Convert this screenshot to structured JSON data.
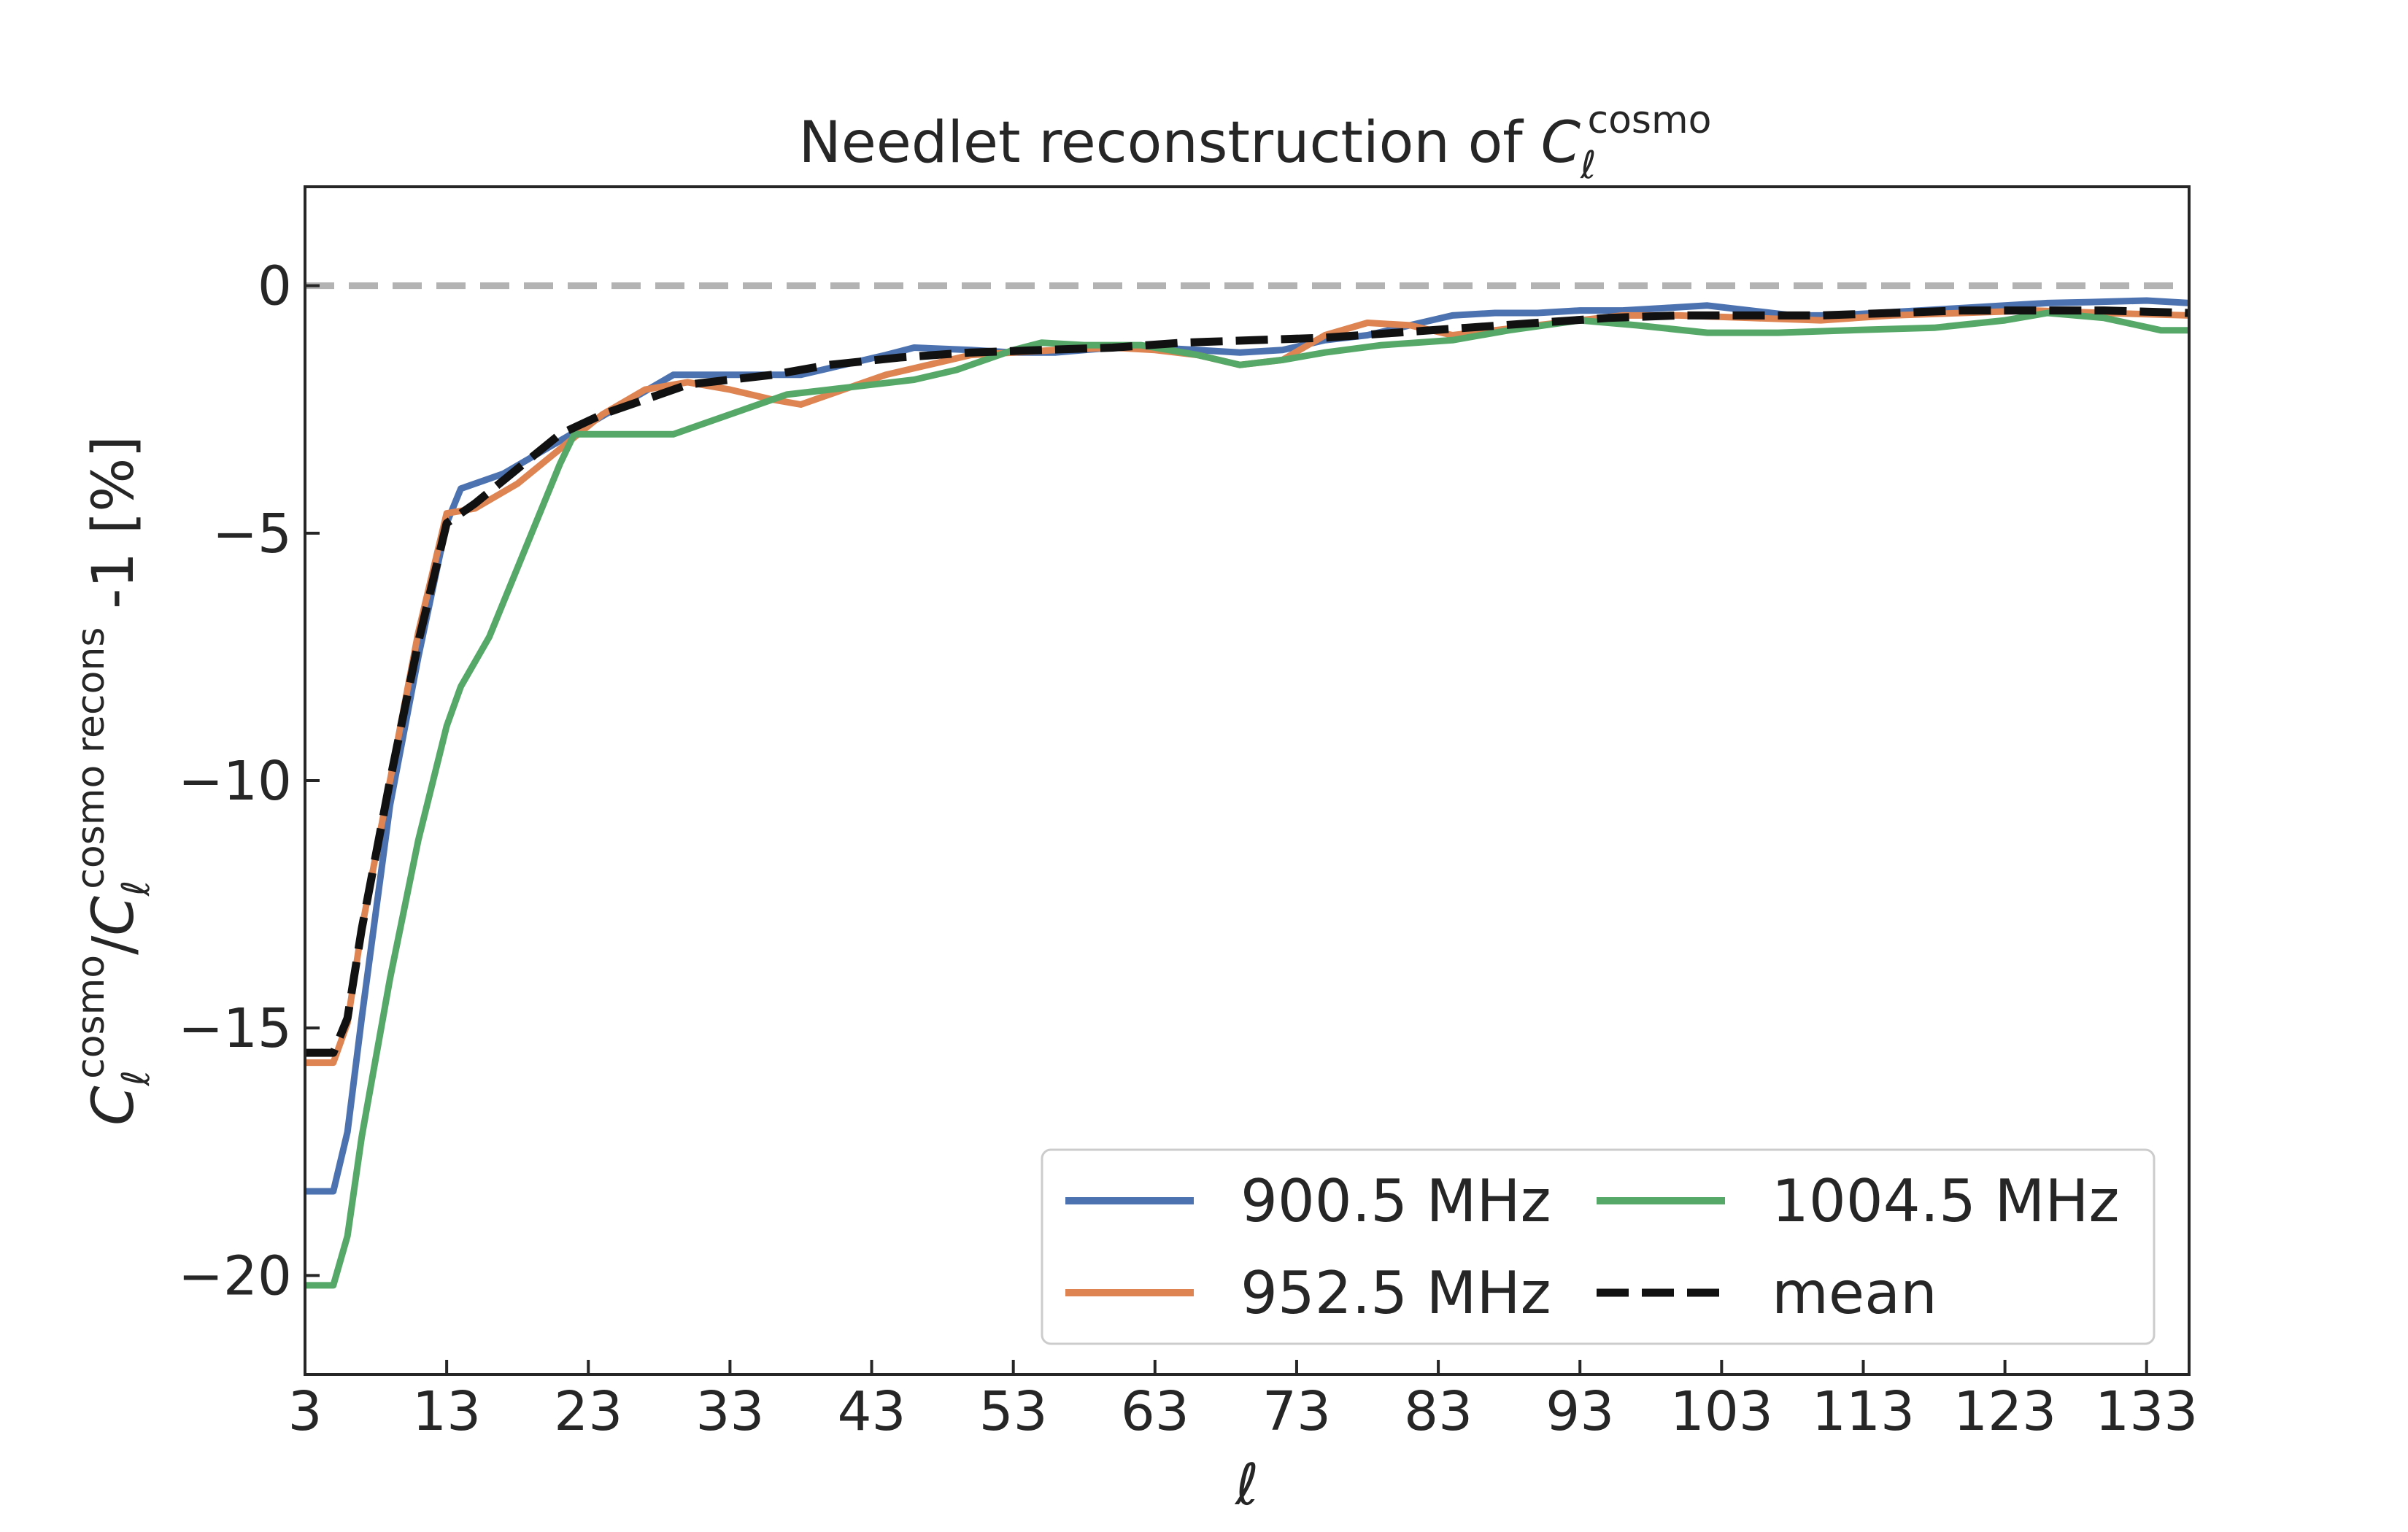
{
  "chart_data": {
    "type": "line",
    "title": "Needlet reconstruction of C_ℓ^cosmo",
    "title_parts": {
      "prefix": "Needlet reconstruction of ",
      "symbol": "C",
      "sub": "ℓ",
      "sup": "cosmo"
    },
    "xlabel": "ℓ",
    "ylabel": "C_ℓ^cosmo / C_ℓ^cosmo recons -1 [%]",
    "ylabel_parts": {
      "symbol": "C",
      "sub": "ℓ",
      "sup1": "cosmo",
      "slash": "/",
      "sup2": "cosmo recons",
      "suffix": " -1 [%]"
    },
    "xlim": [
      3,
      136
    ],
    "ylim": [
      -22,
      2
    ],
    "xticks": [
      3,
      13,
      23,
      33,
      43,
      53,
      63,
      73,
      83,
      93,
      103,
      113,
      123,
      133
    ],
    "yticks": [
      0,
      -5,
      -10,
      -15,
      -20
    ],
    "ytick_labels": [
      "0",
      "−5",
      "−10",
      "−15",
      "−20"
    ],
    "reference_line": {
      "y": 0,
      "style": "dashed",
      "color": "#b3b3b3"
    },
    "grid": false,
    "legend": {
      "position": "lower-right",
      "columns": 2
    },
    "series": [
      {
        "name": "900.5 MHz",
        "color": "#4c72b0",
        "style": "solid",
        "x": [
          3,
          5,
          6,
          7,
          9,
          11,
          13,
          14,
          17,
          20,
          23,
          26,
          29,
          32,
          35,
          38,
          41,
          44,
          46,
          50,
          53,
          56,
          60,
          63,
          66,
          69,
          72,
          75,
          78,
          81,
          84,
          87,
          90,
          93,
          96,
          99,
          102,
          105,
          108,
          111,
          114,
          117,
          120,
          123,
          126,
          129,
          133,
          136
        ],
        "y": [
          -18.3,
          -18.3,
          -17.1,
          -14.8,
          -10.5,
          -7.5,
          -4.8,
          -4.1,
          -3.8,
          -3.3,
          -2.8,
          -2.3,
          -1.8,
          -1.8,
          -1.8,
          -1.8,
          -1.6,
          -1.4,
          -1.25,
          -1.3,
          -1.35,
          -1.35,
          -1.25,
          -1.25,
          -1.3,
          -1.35,
          -1.3,
          -1.1,
          -1.0,
          -0.8,
          -0.6,
          -0.55,
          -0.55,
          -0.5,
          -0.5,
          -0.45,
          -0.4,
          -0.5,
          -0.6,
          -0.6,
          -0.55,
          -0.5,
          -0.45,
          -0.4,
          -0.35,
          -0.33,
          -0.3,
          -0.35
        ]
      },
      {
        "name": "952.5 MHz",
        "color": "#dd8452",
        "style": "solid",
        "x": [
          3,
          5,
          6,
          7,
          9,
          11,
          13,
          15,
          18,
          21,
          24,
          27,
          30,
          33,
          36,
          38,
          41,
          44,
          47,
          50,
          53,
          56,
          60,
          63,
          66,
          69,
          72,
          75,
          78,
          81,
          84,
          87,
          90,
          93,
          96,
          100,
          105,
          110,
          115,
          120,
          125,
          130,
          136
        ],
        "y": [
          -15.7,
          -15.7,
          -14.9,
          -13.0,
          -10.0,
          -7.0,
          -4.6,
          -4.5,
          -4.0,
          -3.3,
          -2.6,
          -2.1,
          -1.95,
          -2.1,
          -2.3,
          -2.4,
          -2.1,
          -1.8,
          -1.6,
          -1.4,
          -1.35,
          -1.3,
          -1.25,
          -1.3,
          -1.4,
          -1.6,
          -1.5,
          -1.0,
          -0.75,
          -0.8,
          -1.0,
          -0.9,
          -0.8,
          -0.7,
          -0.6,
          -0.6,
          -0.65,
          -0.7,
          -0.6,
          -0.55,
          -0.5,
          -0.55,
          -0.6
        ]
      },
      {
        "name": "1004.5 MHz",
        "color": "#55a868",
        "style": "solid",
        "x": [
          3,
          5,
          6,
          7,
          9,
          11,
          13,
          14,
          16,
          19,
          21,
          22,
          24,
          26,
          29,
          31,
          34,
          37,
          40,
          43,
          46,
          49,
          52,
          53,
          55,
          58,
          62,
          66,
          69,
          72,
          75,
          79,
          84,
          88,
          93,
          97,
          102,
          107,
          112,
          118,
          123,
          126,
          130,
          134,
          136
        ],
        "y": [
          -20.2,
          -20.2,
          -19.2,
          -17.2,
          -14.0,
          -11.2,
          -8.9,
          -8.1,
          -7.1,
          -5.0,
          -3.6,
          -3.0,
          -3.0,
          -3.0,
          -3.0,
          -2.8,
          -2.5,
          -2.2,
          -2.1,
          -2.0,
          -1.9,
          -1.7,
          -1.4,
          -1.3,
          -1.15,
          -1.2,
          -1.2,
          -1.4,
          -1.6,
          -1.5,
          -1.35,
          -1.2,
          -1.1,
          -0.9,
          -0.7,
          -0.8,
          -0.95,
          -0.95,
          -0.9,
          -0.85,
          -0.7,
          -0.55,
          -0.65,
          -0.9,
          -0.9
        ]
      },
      {
        "name": "mean",
        "color": "#111111",
        "style": "dashed",
        "x": [
          3,
          5,
          6,
          7,
          9,
          11,
          13,
          15,
          18,
          21,
          24,
          27,
          30,
          33,
          36,
          40,
          45,
          50,
          55,
          60,
          65,
          70,
          75,
          80,
          85,
          90,
          95,
          100,
          105,
          110,
          115,
          120,
          125,
          130,
          136
        ],
        "y": [
          -15.5,
          -15.5,
          -14.8,
          -13.0,
          -10.0,
          -7.2,
          -4.8,
          -4.4,
          -3.7,
          -3.0,
          -2.6,
          -2.3,
          -2.0,
          -1.9,
          -1.8,
          -1.6,
          -1.45,
          -1.35,
          -1.3,
          -1.25,
          -1.15,
          -1.1,
          -1.05,
          -0.95,
          -0.85,
          -0.75,
          -0.65,
          -0.6,
          -0.6,
          -0.6,
          -0.55,
          -0.5,
          -0.5,
          -0.5,
          -0.55
        ]
      }
    ]
  }
}
